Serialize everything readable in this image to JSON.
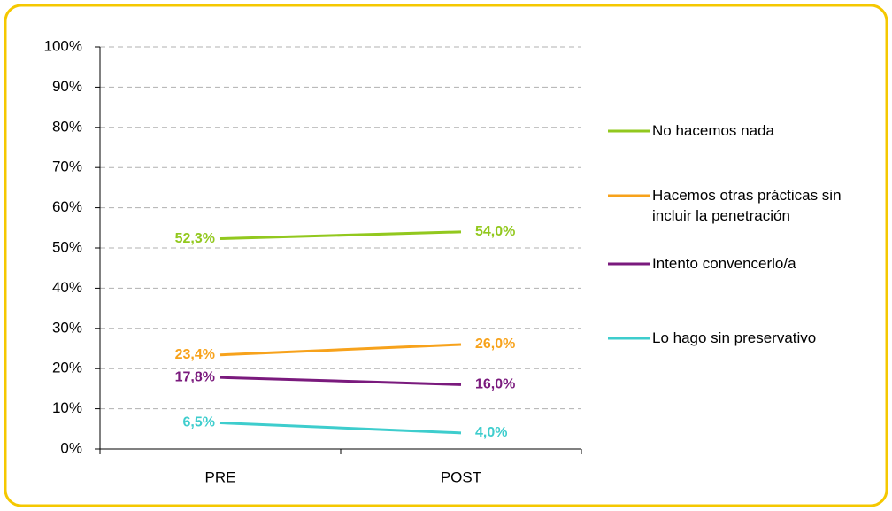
{
  "chart_data": {
    "type": "line",
    "categories": [
      "PRE",
      "POST"
    ],
    "series": [
      {
        "name": "No hacemos nada",
        "color": "#92c81e",
        "values": [
          52.3,
          54.0
        ],
        "value_labels": [
          "52,3%",
          "54,0%"
        ]
      },
      {
        "name": "Hacemos otras prácticas sin incluir la penetración",
        "color": "#f7a21b",
        "values": [
          23.4,
          26.0
        ],
        "value_labels": [
          "23,4%",
          "26,0%"
        ]
      },
      {
        "name": "Intento convencerlo/a",
        "color": "#7a1a7d",
        "values": [
          17.8,
          16.0
        ],
        "value_labels": [
          "17,8%",
          "16,0%"
        ]
      },
      {
        "name": "Lo hago sin preservativo",
        "color": "#3ecdcd",
        "values": [
          6.5,
          4.0
        ],
        "value_labels": [
          "6,5%",
          "4,0%"
        ]
      }
    ],
    "ylim": [
      0,
      100
    ],
    "yticks": [
      {
        "value": 0,
        "label": "0%"
      },
      {
        "value": 10,
        "label": "10%"
      },
      {
        "value": 20,
        "label": "20%"
      },
      {
        "value": 30,
        "label": "30%"
      },
      {
        "value": 40,
        "label": "40%"
      },
      {
        "value": 50,
        "label": "50%"
      },
      {
        "value": 60,
        "label": "60%"
      },
      {
        "value": 70,
        "label": "70%"
      },
      {
        "value": 80,
        "label": "80%"
      },
      {
        "value": 90,
        "label": "90%"
      },
      {
        "value": 100,
        "label": "100%"
      }
    ],
    "grid": true,
    "legend": "right"
  }
}
